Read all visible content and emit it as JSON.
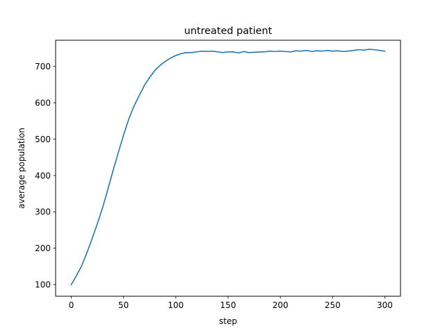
{
  "chart_data": {
    "type": "line",
    "title": "untreated patient",
    "xlabel": "step",
    "ylabel": "average population",
    "xlim": [
      -15,
      315
    ],
    "ylim": [
      68,
      772
    ],
    "xticks": [
      0,
      50,
      100,
      150,
      200,
      250,
      300
    ],
    "yticks": [
      100,
      200,
      300,
      400,
      500,
      600,
      700
    ],
    "grid": false,
    "legend": "none",
    "series_color": "#1f77b4",
    "series": [
      {
        "x": [
          0,
          5,
          10,
          15,
          20,
          25,
          30,
          35,
          40,
          45,
          50,
          55,
          60,
          65,
          70,
          75,
          80,
          85,
          90,
          95,
          100,
          105,
          110,
          115,
          120,
          125,
          130,
          135,
          140,
          145,
          150,
          155,
          160,
          165,
          170,
          175,
          180,
          185,
          190,
          195,
          200,
          205,
          210,
          215,
          220,
          225,
          230,
          235,
          240,
          245,
          250,
          255,
          260,
          265,
          270,
          275,
          280,
          285,
          290,
          295,
          300
        ],
        "values": [
          100,
          125,
          152,
          188,
          227,
          268,
          312,
          362,
          414,
          463,
          511,
          555,
          591,
          620,
          648,
          670,
          689,
          703,
          714,
          723,
          730,
          735,
          738,
          738,
          740,
          742,
          741,
          742,
          740,
          738,
          740,
          740,
          737,
          741,
          738,
          739,
          740,
          740,
          742,
          741,
          742,
          741,
          740,
          743,
          742,
          744,
          741,
          743,
          742,
          744,
          742,
          743,
          741,
          742,
          744,
          746,
          745,
          747,
          746,
          744,
          742
        ]
      }
    ]
  }
}
